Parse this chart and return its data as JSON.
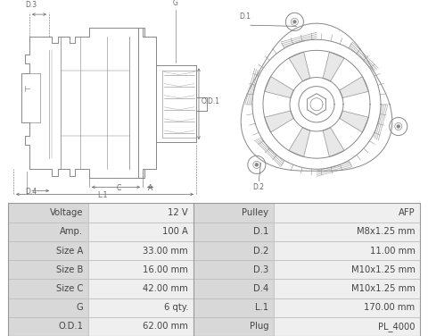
{
  "table_rows": [
    [
      "Voltage",
      "12 V",
      "Pulley",
      "AFP"
    ],
    [
      "Amp.",
      "100 A",
      "D.1",
      "M8x1.25 mm"
    ],
    [
      "Size A",
      "33.00 mm",
      "D.2",
      "11.00 mm"
    ],
    [
      "Size B",
      "16.00 mm",
      "D.3",
      "M10x1.25 mm"
    ],
    [
      "Size C",
      "42.00 mm",
      "D.4",
      "M10x1.25 mm"
    ],
    [
      "G",
      "6 qty.",
      "L.1",
      "170.00 mm"
    ],
    [
      "O.D.1",
      "62.00 mm",
      "Plug",
      "PL_4000"
    ]
  ],
  "header_bg": "#d8d8d8",
  "alt_row_bg": "#efefef",
  "white_bg": "#ffffff",
  "border_color": "#bbbbbb",
  "text_color": "#444444",
  "font_size": 7.2,
  "diagram_bg": "#ffffff",
  "line_color": "#888888",
  "dim_color": "#666666"
}
